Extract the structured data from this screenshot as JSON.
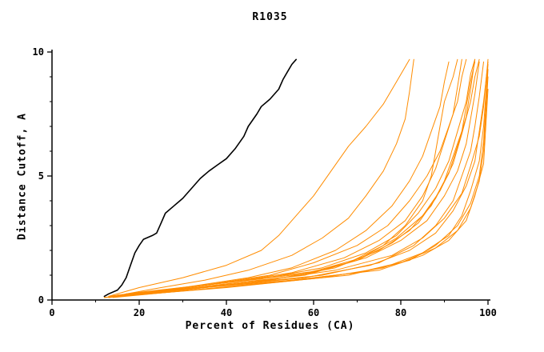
{
  "colors": {
    "background": "#ffffff",
    "axis": "#000000",
    "target_series": "#000000",
    "model_series": "#ff8c00"
  },
  "chart_data": {
    "type": "line",
    "title": "R1035",
    "xlabel": "Percent of Residues (CA)",
    "ylabel": "Distance Cutoff, A",
    "xlim": [
      0,
      100
    ],
    "ylim": [
      0,
      10
    ],
    "xticks": [
      0,
      20,
      40,
      60,
      80,
      100
    ],
    "yticks": [
      0,
      5,
      10
    ],
    "x_minor_ticks": [
      10,
      30,
      50,
      70,
      90
    ],
    "y_minor_ticks": [
      1,
      2,
      3,
      4,
      6,
      7,
      8,
      9
    ],
    "grid": false,
    "legend": "none",
    "series": [
      {
        "name": "black-curve",
        "color": "#000000",
        "width": 1.6,
        "points": [
          [
            12,
            0.15
          ],
          [
            13,
            0.25
          ],
          [
            15,
            0.4
          ],
          [
            16,
            0.6
          ],
          [
            17,
            0.9
          ],
          [
            18,
            1.4
          ],
          [
            19,
            1.9
          ],
          [
            20,
            2.2
          ],
          [
            21,
            2.45
          ],
          [
            23,
            2.6
          ],
          [
            24,
            2.7
          ],
          [
            25,
            3.1
          ],
          [
            26,
            3.5
          ],
          [
            28,
            3.8
          ],
          [
            30,
            4.1
          ],
          [
            32,
            4.5
          ],
          [
            34,
            4.9
          ],
          [
            36,
            5.2
          ],
          [
            38,
            5.45
          ],
          [
            40,
            5.7
          ],
          [
            42,
            6.1
          ],
          [
            44,
            6.6
          ],
          [
            45,
            7.0
          ],
          [
            47,
            7.5
          ],
          [
            48,
            7.8
          ],
          [
            50,
            8.1
          ],
          [
            52,
            8.5
          ],
          [
            53,
            8.9
          ],
          [
            54,
            9.2
          ],
          [
            55,
            9.5
          ],
          [
            56,
            9.7
          ]
        ]
      },
      {
        "name": "orange-curve-1",
        "color": "#ff8c00",
        "width": 1,
        "points": [
          [
            13,
            0.15
          ],
          [
            20,
            0.5
          ],
          [
            30,
            0.9
          ],
          [
            40,
            1.4
          ],
          [
            48,
            2.0
          ],
          [
            52,
            2.6
          ],
          [
            56,
            3.4
          ],
          [
            60,
            4.2
          ],
          [
            64,
            5.2
          ],
          [
            68,
            6.2
          ],
          [
            72,
            7.0
          ],
          [
            76,
            7.9
          ],
          [
            79,
            8.8
          ],
          [
            82,
            9.7
          ]
        ]
      },
      {
        "name": "orange-curve-2",
        "color": "#ff8c00",
        "width": 1,
        "points": [
          [
            14,
            0.15
          ],
          [
            25,
            0.5
          ],
          [
            35,
            0.8
          ],
          [
            45,
            1.2
          ],
          [
            55,
            1.8
          ],
          [
            62,
            2.5
          ],
          [
            68,
            3.3
          ],
          [
            72,
            4.2
          ],
          [
            76,
            5.2
          ],
          [
            79,
            6.3
          ],
          [
            81,
            7.3
          ],
          [
            82,
            8.4
          ],
          [
            83,
            9.7
          ]
        ]
      },
      {
        "name": "orange-curve-3",
        "color": "#ff8c00",
        "width": 1,
        "points": [
          [
            13,
            0.1
          ],
          [
            30,
            0.5
          ],
          [
            45,
            0.9
          ],
          [
            55,
            1.3
          ],
          [
            65,
            2.0
          ],
          [
            72,
            2.8
          ],
          [
            78,
            3.8
          ],
          [
            82,
            4.8
          ],
          [
            85,
            5.8
          ],
          [
            87,
            6.8
          ],
          [
            89,
            7.8
          ],
          [
            90,
            8.8
          ],
          [
            91,
            9.6
          ]
        ]
      },
      {
        "name": "orange-curve-4",
        "color": "#ff8c00",
        "width": 1,
        "points": [
          [
            15,
            0.15
          ],
          [
            35,
            0.6
          ],
          [
            50,
            1.0
          ],
          [
            60,
            1.5
          ],
          [
            70,
            2.2
          ],
          [
            77,
            3.0
          ],
          [
            82,
            4.0
          ],
          [
            86,
            5.0
          ],
          [
            89,
            6.0
          ],
          [
            91,
            7.0
          ],
          [
            93,
            8.0
          ],
          [
            94,
            9.0
          ],
          [
            95,
            9.7
          ]
        ]
      },
      {
        "name": "orange-curve-5",
        "color": "#ff8c00",
        "width": 1,
        "points": [
          [
            12,
            0.1
          ],
          [
            30,
            0.4
          ],
          [
            50,
            0.8
          ],
          [
            65,
            1.3
          ],
          [
            75,
            2.0
          ],
          [
            82,
            2.8
          ],
          [
            87,
            3.8
          ],
          [
            90,
            4.8
          ],
          [
            92,
            5.8
          ],
          [
            94,
            6.8
          ],
          [
            95,
            7.8
          ],
          [
            96,
            8.8
          ],
          [
            97,
            9.6
          ]
        ]
      },
      {
        "name": "orange-curve-6",
        "color": "#ff8c00",
        "width": 1,
        "points": [
          [
            16,
            0.2
          ],
          [
            40,
            0.7
          ],
          [
            60,
            1.1
          ],
          [
            72,
            1.7
          ],
          [
            80,
            2.4
          ],
          [
            86,
            3.2
          ],
          [
            90,
            4.2
          ],
          [
            93,
            5.2
          ],
          [
            95,
            6.3
          ],
          [
            96,
            7.3
          ],
          [
            97,
            8.3
          ],
          [
            98,
            9.6
          ]
        ]
      },
      {
        "name": "orange-curve-7",
        "color": "#ff8c00",
        "width": 1,
        "points": [
          [
            14,
            0.15
          ],
          [
            40,
            0.6
          ],
          [
            62,
            1.0
          ],
          [
            75,
            1.5
          ],
          [
            83,
            2.2
          ],
          [
            88,
            3.0
          ],
          [
            92,
            4.0
          ],
          [
            94,
            5.0
          ],
          [
            96,
            6.0
          ],
          [
            97,
            7.0
          ],
          [
            98,
            8.2
          ],
          [
            99,
            9.6
          ]
        ]
      },
      {
        "name": "orange-curve-8",
        "color": "#ff8c00",
        "width": 1,
        "points": [
          [
            13,
            0.1
          ],
          [
            35,
            0.5
          ],
          [
            58,
            0.9
          ],
          [
            73,
            1.4
          ],
          [
            82,
            2.0
          ],
          [
            88,
            2.7
          ],
          [
            92,
            3.6
          ],
          [
            95,
            4.6
          ],
          [
            97,
            5.6
          ],
          [
            98,
            6.8
          ],
          [
            99,
            8.0
          ],
          [
            100,
            9.6
          ]
        ]
      },
      {
        "name": "orange-curve-9",
        "color": "#ff8c00",
        "width": 1,
        "points": [
          [
            15,
            0.15
          ],
          [
            45,
            0.7
          ],
          [
            65,
            1.2
          ],
          [
            78,
            1.8
          ],
          [
            85,
            2.5
          ],
          [
            90,
            3.3
          ],
          [
            94,
            4.3
          ],
          [
            96,
            5.4
          ],
          [
            98,
            6.6
          ],
          [
            99,
            7.8
          ],
          [
            100,
            9.7
          ]
        ]
      },
      {
        "name": "orange-curve-10",
        "color": "#ff8c00",
        "width": 1,
        "points": [
          [
            12,
            0.1
          ],
          [
            40,
            0.5
          ],
          [
            62,
            0.9
          ],
          [
            76,
            1.3
          ],
          [
            85,
            1.9
          ],
          [
            91,
            2.6
          ],
          [
            94,
            3.4
          ],
          [
            96,
            4.4
          ],
          [
            98,
            5.6
          ],
          [
            99,
            7.0
          ],
          [
            100,
            9.5
          ]
        ]
      },
      {
        "name": "orange-curve-11",
        "color": "#ff8c00",
        "width": 1,
        "points": [
          [
            14,
            0.1
          ],
          [
            50,
            0.7
          ],
          [
            70,
            1.1
          ],
          [
            82,
            1.6
          ],
          [
            88,
            2.2
          ],
          [
            93,
            3.0
          ],
          [
            96,
            3.9
          ],
          [
            98,
            5.0
          ],
          [
            99,
            6.4
          ],
          [
            100,
            9.3
          ]
        ]
      },
      {
        "name": "orange-curve-12",
        "color": "#ff8c00",
        "width": 1,
        "points": [
          [
            13,
            0.1
          ],
          [
            45,
            0.6
          ],
          [
            68,
            1.0
          ],
          [
            80,
            1.5
          ],
          [
            88,
            2.1
          ],
          [
            93,
            2.8
          ],
          [
            96,
            3.7
          ],
          [
            98,
            4.8
          ],
          [
            99,
            6.0
          ],
          [
            100,
            9.0
          ]
        ]
      },
      {
        "name": "orange-curve-13",
        "color": "#ff8c00",
        "width": 1,
        "points": [
          [
            15,
            0.2
          ],
          [
            55,
            0.8
          ],
          [
            75,
            1.2
          ],
          [
            85,
            1.8
          ],
          [
            91,
            2.4
          ],
          [
            95,
            3.2
          ],
          [
            97,
            4.2
          ],
          [
            99,
            5.5
          ],
          [
            100,
            8.5
          ]
        ]
      },
      {
        "name": "orange-curve-14",
        "color": "#ff8c00",
        "width": 1,
        "points": [
          [
            14,
            0.15
          ],
          [
            35,
            0.55
          ],
          [
            55,
            0.95
          ],
          [
            68,
            1.5
          ],
          [
            76,
            2.2
          ],
          [
            81,
            3.0
          ],
          [
            85,
            4.0
          ],
          [
            87,
            5.0
          ],
          [
            88,
            6.0
          ],
          [
            89,
            7.0
          ],
          [
            90,
            8.0
          ],
          [
            92,
            9.0
          ],
          [
            93,
            9.7
          ]
        ]
      },
      {
        "name": "orange-curve-15",
        "color": "#ff8c00",
        "width": 1,
        "points": [
          [
            16,
            0.2
          ],
          [
            38,
            0.6
          ],
          [
            58,
            1.0
          ],
          [
            70,
            1.6
          ],
          [
            78,
            2.3
          ],
          [
            84,
            3.1
          ],
          [
            88,
            4.1
          ],
          [
            91,
            5.1
          ],
          [
            93,
            6.2
          ],
          [
            95,
            7.4
          ],
          [
            96,
            8.5
          ],
          [
            97,
            9.7
          ]
        ]
      },
      {
        "name": "orange-curve-16",
        "color": "#ff8c00",
        "width": 1,
        "points": [
          [
            12,
            0.1
          ],
          [
            25,
            0.4
          ],
          [
            40,
            0.7
          ],
          [
            55,
            1.1
          ],
          [
            67,
            1.7
          ],
          [
            75,
            2.4
          ],
          [
            81,
            3.2
          ],
          [
            85,
            4.2
          ],
          [
            88,
            5.3
          ],
          [
            90,
            6.4
          ],
          [
            92,
            7.5
          ],
          [
            93,
            8.6
          ],
          [
            94,
            9.7
          ]
        ]
      },
      {
        "name": "orange-curve-17",
        "color": "#ff8c00",
        "width": 1,
        "points": [
          [
            13,
            0.15
          ],
          [
            30,
            0.5
          ],
          [
            48,
            0.85
          ],
          [
            62,
            1.3
          ],
          [
            72,
            1.9
          ],
          [
            79,
            2.6
          ],
          [
            84,
            3.5
          ],
          [
            88,
            4.5
          ],
          [
            91,
            5.6
          ],
          [
            93,
            6.8
          ],
          [
            95,
            8.0
          ],
          [
            96,
            9.1
          ],
          [
            97,
            9.7
          ]
        ]
      },
      {
        "name": "orange-curve-18",
        "color": "#ff8c00",
        "width": 1,
        "points": [
          [
            17,
            0.25
          ],
          [
            42,
            0.75
          ],
          [
            60,
            1.15
          ],
          [
            71,
            1.7
          ],
          [
            79,
            2.5
          ],
          [
            85,
            3.4
          ],
          [
            89,
            4.4
          ],
          [
            92,
            5.5
          ],
          [
            94,
            6.7
          ],
          [
            96,
            8.0
          ],
          [
            97,
            9.0
          ],
          [
            98,
            9.7
          ]
        ]
      }
    ]
  }
}
